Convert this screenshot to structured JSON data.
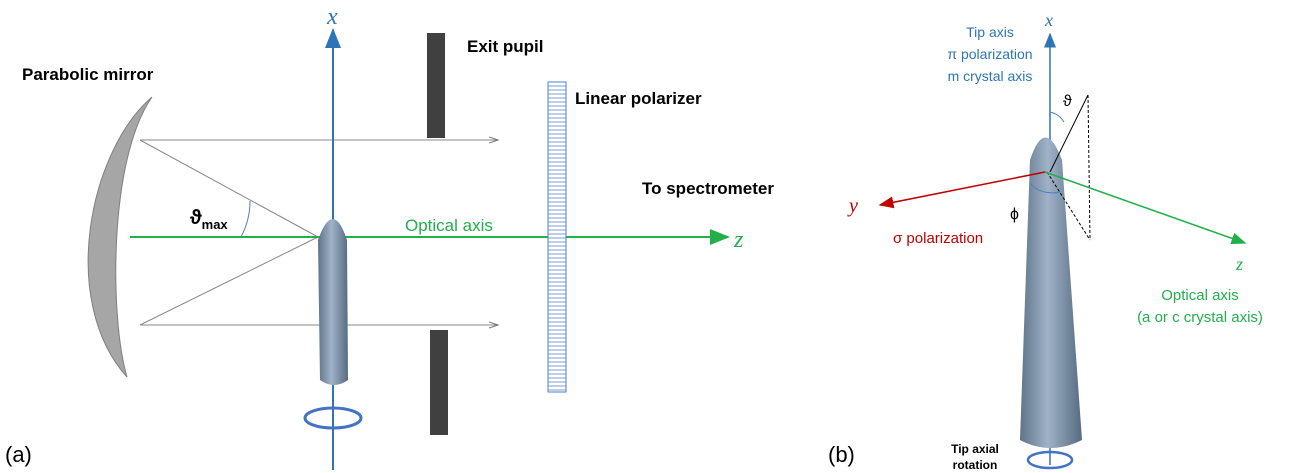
{
  "panel_a": {
    "tag": "(a)",
    "mirror": "Parabolic mirror",
    "x_axis": "x",
    "exit_pupil": "Exit pupil",
    "polarizer": "Linear polarizer",
    "output": "To spectrometer",
    "angle": "ϑ",
    "angle_sub": "max",
    "optical_axis": "Optical axis",
    "z_axis": "z"
  },
  "panel_b": {
    "tag": "(b)",
    "x_axis": "x",
    "x_notes": [
      "Tip axis",
      "π polarization",
      "m crystal axis"
    ],
    "theta": "ϑ",
    "phi": "ϕ",
    "y_axis": "y",
    "y_note": "σ polarization",
    "z_axis": "z",
    "z_notes": [
      "Optical axis",
      "(a or c crystal axis)"
    ],
    "rotation": [
      "Tip axial",
      "rotation"
    ]
  }
}
